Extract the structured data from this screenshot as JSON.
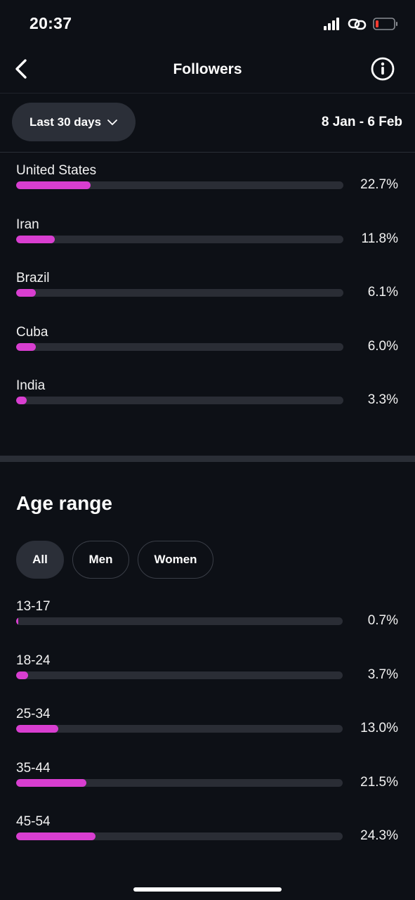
{
  "status_bar": {
    "time": "20:37",
    "icons": [
      "signal-icon",
      "link-icon",
      "battery-icon"
    ]
  },
  "header": {
    "title": "Followers",
    "back_icon": "chevron-left-icon",
    "info_icon": "info-icon"
  },
  "filters": {
    "period_label": "Last 30 days",
    "date_range": "8 Jan - 6 Feb"
  },
  "locations": [
    {
      "label": "United States",
      "value": "22.7%",
      "fraction": 0.227
    },
    {
      "label": "Iran",
      "value": "11.8%",
      "fraction": 0.118
    },
    {
      "label": "Brazil",
      "value": "6.1%",
      "fraction": 0.061
    },
    {
      "label": "Cuba",
      "value": "6.0%",
      "fraction": 0.06
    },
    {
      "label": "India",
      "value": "3.3%",
      "fraction": 0.033
    }
  ],
  "age_range": {
    "title": "Age range",
    "segments": [
      "All",
      "Men",
      "Women"
    ],
    "selected_segment": "All",
    "rows": [
      {
        "label": "13-17",
        "value": "0.7%",
        "fraction": 0.007
      },
      {
        "label": "18-24",
        "value": "3.7%",
        "fraction": 0.037
      },
      {
        "label": "25-34",
        "value": "13.0%",
        "fraction": 0.13
      },
      {
        "label": "35-44",
        "value": "21.5%",
        "fraction": 0.215
      },
      {
        "label": "45-54",
        "value": "24.3%",
        "fraction": 0.243
      }
    ]
  },
  "colors": {
    "background": "#0d1016",
    "bar_fill": "#d83ed0",
    "bar_track": "#2a2d35",
    "chip_active": "#2b2f38"
  }
}
